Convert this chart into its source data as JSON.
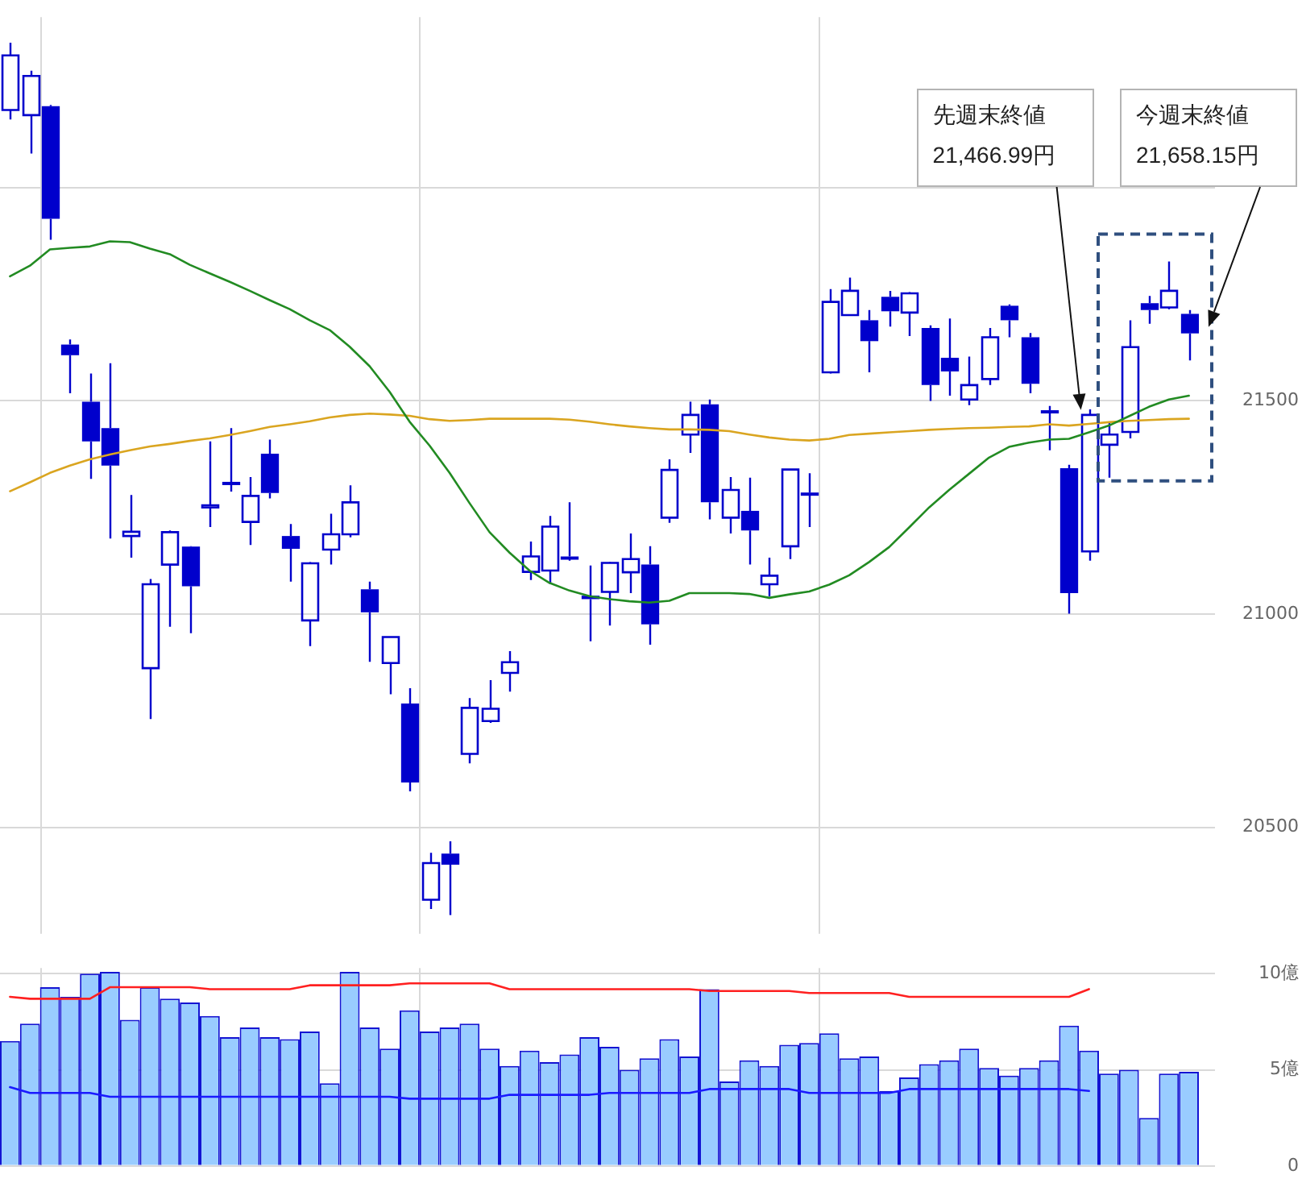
{
  "chart_data": [
    {
      "type": "candlestick",
      "categories": [
        null,
        null,
        null,
        null,
        null,
        null,
        null,
        null,
        null,
        null,
        null,
        null,
        null,
        null,
        null,
        null,
        null,
        null,
        null,
        null,
        null,
        null,
        null,
        null,
        null,
        null,
        null,
        null,
        null,
        null,
        null,
        null,
        null,
        null,
        null,
        null,
        null,
        null,
        null,
        null,
        null,
        null,
        null,
        null,
        null,
        null,
        null,
        null,
        null,
        null,
        null,
        null,
        null,
        null,
        null,
        null,
        null,
        null,
        null,
        null
      ],
      "ohlc": [
        [
          22182,
          22340,
          22160,
          22310
        ],
        [
          22170,
          22274,
          22080,
          22262
        ],
        [
          22191,
          22194,
          21878,
          21927
        ],
        [
          21632,
          21644,
          21518,
          21607
        ],
        [
          21498,
          21564,
          21317,
          21405
        ],
        [
          21436,
          21588,
          21177,
          21348
        ],
        [
          21183,
          21279,
          21132,
          21193
        ],
        [
          20873,
          21082,
          20754,
          21070
        ],
        [
          21116,
          21196,
          20970,
          21192
        ],
        [
          21158,
          21159,
          20955,
          21065
        ],
        [
          21250,
          21405,
          21204,
          21255
        ],
        [
          21310,
          21436,
          21287,
          21305
        ],
        [
          21216,
          21321,
          21162,
          21277
        ],
        [
          21376,
          21409,
          21271,
          21284
        ],
        [
          21183,
          21211,
          21076,
          21153
        ],
        [
          20985,
          21122,
          20925,
          21119
        ],
        [
          21151,
          21235,
          21116,
          21187
        ],
        [
          21187,
          21302,
          21180,
          21262
        ],
        [
          21058,
          21076,
          20888,
          21004
        ],
        [
          20885,
          20947,
          20812,
          20946
        ],
        [
          20790,
          20826,
          20584,
          20605
        ],
        [
          20330,
          20440,
          20308,
          20416
        ],
        [
          20438,
          20467,
          20294,
          20412
        ],
        [
          20672,
          20803,
          20650,
          20780
        ],
        [
          20749,
          20845,
          20745,
          20778
        ],
        [
          20862,
          20913,
          20818,
          20887
        ],
        [
          21099,
          21170,
          21080,
          21135
        ],
        [
          21102,
          21230,
          21070,
          21205
        ],
        [
          21135,
          21262,
          21125,
          21130
        ],
        [
          21043,
          21114,
          20936,
          21035
        ],
        [
          21052,
          21122,
          20973,
          21120
        ],
        [
          21098,
          21189,
          21049,
          21129
        ],
        [
          21116,
          21159,
          20928,
          20976
        ],
        [
          21226,
          21363,
          21214,
          21338
        ],
        [
          21421,
          21498,
          21378,
          21467
        ],
        [
          21492,
          21503,
          21222,
          21262
        ],
        [
          21226,
          21321,
          21189,
          21291
        ],
        [
          21242,
          21320,
          21116,
          21196
        ],
        [
          21070,
          21132,
          21041,
          21090
        ],
        [
          21159,
          21340,
          21129,
          21339
        ],
        [
          21285,
          21330,
          21204,
          21280
        ],
        [
          21567,
          21762,
          21564,
          21732
        ],
        [
          21701,
          21789,
          21699,
          21758
        ],
        [
          21689,
          21713,
          21567,
          21640
        ],
        [
          21744,
          21758,
          21674,
          21710
        ],
        [
          21707,
          21755,
          21652,
          21752
        ],
        [
          21671,
          21677,
          21500,
          21537
        ],
        [
          21601,
          21693,
          21512,
          21569
        ],
        [
          21503,
          21604,
          21490,
          21537
        ],
        [
          21551,
          21671,
          21537,
          21649
        ],
        [
          21723,
          21726,
          21649,
          21689
        ],
        [
          21649,
          21659,
          21518,
          21540
        ],
        [
          21478,
          21488,
          21384,
          21474
        ],
        [
          21342,
          21350,
          21001,
          21049
        ],
        [
          21147,
          21480,
          21125,
          21466.99
        ],
        [
          21397,
          21449,
          21320,
          21421
        ],
        [
          21427,
          21689,
          21412,
          21626
        ],
        [
          21729,
          21746,
          21681,
          21713
        ],
        [
          21719,
          21827,
          21715,
          21758
        ],
        [
          21704,
          21713,
          21595,
          21658.15
        ]
      ],
      "color": "#0000cc",
      "series": [
        {
          "type": "line",
          "color": "#228b22",
          "values": [
            21792,
            21817,
            21855,
            21859,
            21862,
            21874,
            21872,
            21857,
            21844,
            21819,
            21799,
            21779,
            21758,
            21736,
            21715,
            21689,
            21666,
            21627,
            21581,
            21521,
            21451,
            21395,
            21331,
            21260,
            21192,
            21144,
            21102,
            21073,
            21055,
            21042,
            21035,
            21030,
            21027,
            21031,
            21049,
            21049,
            21049,
            21047,
            21038,
            21046,
            21053,
            21069,
            21091,
            21122,
            21157,
            21203,
            21250,
            21291,
            21329,
            21367,
            21392,
            21402,
            21409,
            21411,
            21426,
            21442,
            21464,
            21486,
            21503,
            21512
          ]
        },
        {
          "type": "line",
          "color": "#daa520",
          "values": [
            21288,
            21309,
            21331,
            21348,
            21363,
            21374,
            21384,
            21393,
            21399,
            21406,
            21412,
            21420,
            21429,
            21439,
            21445,
            21452,
            21461,
            21467,
            21470,
            21468,
            21465,
            21457,
            21453,
            21455,
            21458,
            21458,
            21458,
            21458,
            21456,
            21451,
            21445,
            21440,
            21436,
            21433,
            21433,
            21432,
            21429,
            21421,
            21414,
            21409,
            21407,
            21411,
            21420,
            21423,
            21426,
            21429,
            21432,
            21434,
            21436,
            21437,
            21439,
            21440,
            21445,
            21442,
            21446,
            21450,
            21453,
            21455,
            21457,
            21458
          ]
        }
      ],
      "ylim": [
        20250,
        22400
      ],
      "yticks": [
        20500,
        21000,
        21500,
        {
          "value": 22000,
          "label": null
        }
      ],
      "grid": "y",
      "tick_labels": "y",
      "annotations": [
        "先週末終値\n21,466.99円",
        "今週末終値\n21,658.15円"
      ]
    },
    {
      "type": "bar",
      "categories": [
        null,
        null,
        null,
        null,
        null,
        null,
        null,
        null,
        null,
        null,
        null,
        null,
        null,
        null,
        null,
        null,
        null,
        null,
        null,
        null,
        null,
        null,
        null,
        null,
        null,
        null,
        null,
        null,
        null,
        null,
        null,
        null,
        null,
        null,
        null,
        null,
        null,
        null,
        null,
        null,
        null,
        null,
        null,
        null,
        null,
        null,
        null,
        null,
        null,
        null,
        null,
        null,
        null,
        null,
        null,
        null,
        null,
        null,
        null,
        null
      ],
      "series": [
        {
          "type": "bar",
          "color": "#99ccff",
          "values": [
            6.5,
            7.4,
            9.3,
            8.8,
            10.0,
            10.1,
            7.6,
            9.3,
            8.7,
            8.5,
            7.8,
            6.7,
            7.2,
            6.7,
            6.6,
            7.0,
            4.3,
            10.1,
            7.2,
            6.1,
            8.1,
            7.0,
            7.2,
            7.4,
            6.1,
            5.2,
            6.0,
            5.4,
            5.8,
            6.7,
            6.2,
            5.0,
            5.6,
            6.6,
            5.7,
            9.2,
            4.4,
            5.5,
            5.2,
            6.3,
            6.4,
            6.9,
            5.6,
            5.7,
            3.9,
            4.6,
            5.3,
            5.5,
            6.1,
            5.1,
            4.7,
            5.1,
            5.5,
            7.3,
            6.0,
            4.8,
            5.0,
            2.5,
            4.8,
            4.9
          ]
        },
        {
          "type": "line",
          "color": "#ff2020",
          "values": [
            8.8,
            8.7,
            8.7,
            8.7,
            8.7,
            9.3,
            9.3,
            9.3,
            9.3,
            9.3,
            9.2,
            9.2,
            9.2,
            9.2,
            9.2,
            9.4,
            9.4,
            9.4,
            9.4,
            9.4,
            9.5,
            9.5,
            9.5,
            9.5,
            9.5,
            9.2,
            9.2,
            9.2,
            9.2,
            9.2,
            9.2,
            9.2,
            9.2,
            9.2,
            9.2,
            9.1,
            9.1,
            9.1,
            9.1,
            9.1,
            9.0,
            9.0,
            9.0,
            9.0,
            9.0,
            8.8,
            8.8,
            8.8,
            8.8,
            8.8,
            8.8,
            8.8,
            8.8,
            8.8,
            9.2,
            null,
            null,
            null,
            null,
            null
          ]
        },
        {
          "type": "line",
          "color": "#1a1aff",
          "values": [
            4.1,
            3.8,
            3.8,
            3.8,
            3.8,
            3.6,
            3.6,
            3.6,
            3.6,
            3.6,
            3.6,
            3.6,
            3.6,
            3.6,
            3.6,
            3.6,
            3.6,
            3.6,
            3.6,
            3.6,
            3.5,
            3.5,
            3.5,
            3.5,
            3.5,
            3.7,
            3.7,
            3.7,
            3.7,
            3.7,
            3.8,
            3.8,
            3.8,
            3.8,
            3.8,
            4.0,
            4.0,
            4.0,
            4.0,
            4.0,
            3.8,
            3.8,
            3.8,
            3.8,
            3.8,
            4.0,
            4.0,
            4.0,
            4.0,
            4.0,
            4.0,
            4.0,
            4.0,
            4.0,
            3.9,
            null,
            null,
            null,
            null,
            null
          ]
        }
      ],
      "ylim": [
        0,
        10.3
      ],
      "yticks": [
        0,
        {
          "value": 5,
          "label": "5億"
        },
        {
          "value": 10,
          "label": "10億"
        }
      ],
      "grid": "y",
      "tick_labels": "y"
    }
  ]
}
